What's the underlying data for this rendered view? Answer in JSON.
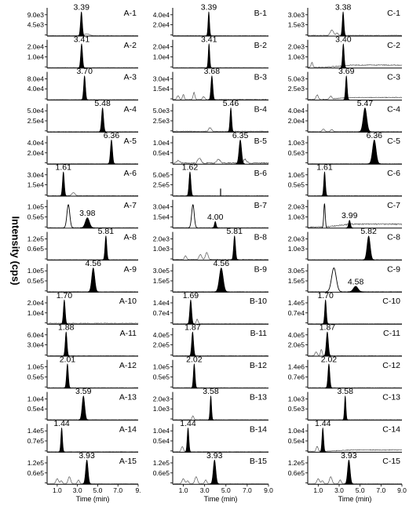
{
  "chart_data": {
    "type": "line",
    "ylabel": "Intensity (cps)",
    "xlabel": "Time (min)",
    "x_ticks": {
      "A": [
        "1.0",
        "3.0",
        "5.0",
        "7.0",
        "9."
      ],
      "B": [
        "1.0",
        "3.0",
        "5.0",
        "7.0",
        "9.0"
      ],
      "C": [
        "1.0",
        "3.0",
        "5.0",
        "7.0",
        "9.0"
      ]
    },
    "xlim": [
      0,
      9
    ],
    "columns": [
      "A",
      "B",
      "C"
    ],
    "panels": [
      {
        "label": "A-1",
        "peak": 3.39,
        "peak_label": "3.39",
        "width": 0.09,
        "y_ticks": [
          "9.0e3",
          "4.5e3",
          ""
        ],
        "ghost": [
          {
            "x": 3.9,
            "h": 0.07,
            "w": 0.25
          }
        ],
        "noise": 0.01
      },
      {
        "label": "A-2",
        "peak": 3.41,
        "peak_label": "3.41",
        "width": 0.09,
        "y_ticks": [
          "2.0e4",
          "1.0e4",
          ""
        ],
        "noise": 0.01
      },
      {
        "label": "A-3",
        "peak": 3.7,
        "peak_label": "3.70",
        "width": 0.09,
        "y_ticks": [
          "8.0e4",
          "4.0e4",
          ""
        ],
        "noise": 0.01
      },
      {
        "label": "A-4",
        "peak": 5.48,
        "peak_label": "5.48",
        "width": 0.1,
        "y_ticks": [
          "5.0e4",
          "2.5e4",
          ""
        ],
        "noise": 0.01
      },
      {
        "label": "A-5",
        "peak": 6.36,
        "peak_label": "6.36",
        "width": 0.1,
        "y_ticks": [
          "4.0e4",
          "2.0e4",
          ""
        ],
        "noise": 0.01
      },
      {
        "label": "A-6",
        "peak": 1.61,
        "peak_label": "1.61",
        "width": 0.09,
        "y_ticks": [
          "3.0e4",
          "1.5e4",
          ""
        ],
        "ghost": [
          {
            "x": 2.6,
            "h": 0.12,
            "w": 0.15
          }
        ],
        "noise": 0.01
      },
      {
        "label": "A-7",
        "peak": 3.98,
        "peak_label": "3.98",
        "width": 0.2,
        "height": 0.4,
        "y_ticks": [
          "1.0e5",
          "0.5e5",
          ""
        ],
        "open": [
          {
            "x": 2.1,
            "h": 0.92,
            "w": 0.14
          }
        ],
        "noise": 0.01
      },
      {
        "label": "A-8",
        "peak": 5.81,
        "peak_label": "5.81",
        "width": 0.09,
        "y_ticks": [
          "1.2e5",
          "0.6e5",
          ""
        ],
        "noise": 0.01
      },
      {
        "label": "A-9",
        "peak": 4.56,
        "peak_label": "4.56",
        "width": 0.15,
        "y_ticks": [
          "1.0e5",
          "0.5e5",
          ""
        ],
        "noise": 0.01
      },
      {
        "label": "A-10",
        "peak": 1.7,
        "peak_label": "1.70",
        "width": 0.09,
        "y_ticks": [
          "2.0e4",
          "1.0e4",
          ""
        ],
        "noise": 0.03
      },
      {
        "label": "A-11",
        "peak": 1.88,
        "peak_label": "1.88",
        "width": 0.09,
        "y_ticks": [
          "6.0e4",
          "3.0e4",
          ""
        ],
        "noise": 0.01
      },
      {
        "label": "A-12",
        "peak": 2.01,
        "peak_label": "2.01",
        "width": 0.09,
        "y_ticks": [
          "1.0e5",
          "0.5e5",
          ""
        ],
        "noise": 0.01
      },
      {
        "label": "A-13",
        "peak": 3.59,
        "peak_label": "3.59",
        "width": 0.13,
        "y_ticks": [
          "1.0e4",
          "0.5e4",
          ""
        ],
        "noise": 0.01
      },
      {
        "label": "A-14",
        "peak": 1.44,
        "peak_label": "1.44",
        "width": 0.08,
        "y_ticks": [
          "1.4e5",
          "0.7e5",
          ""
        ],
        "noise": 0.01
      },
      {
        "label": "A-15",
        "peak": 3.93,
        "peak_label": "3.93",
        "width": 0.12,
        "y_ticks": [
          "1.2e5",
          "0.6e5",
          ""
        ],
        "ghost": [
          {
            "x": 1.0,
            "h": 0.2,
            "w": 0.12
          },
          {
            "x": 1.4,
            "h": 0.12,
            "w": 0.1
          },
          {
            "x": 2.2,
            "h": 0.28,
            "w": 0.12
          },
          {
            "x": 3.1,
            "h": 0.15,
            "w": 0.1
          }
        ],
        "noise": 0.01
      },
      {
        "label": "B-1",
        "peak": 3.39,
        "peak_label": "3.39",
        "width": 0.07,
        "y_ticks": [
          "4.0e4",
          "2.0e4",
          ""
        ],
        "noise": 0.01
      },
      {
        "label": "B-2",
        "peak": 3.41,
        "peak_label": "3.41",
        "width": 0.07,
        "y_ticks": [
          "2.0e4",
          "1.0e4",
          ""
        ],
        "noise": 0.01
      },
      {
        "label": "B-3",
        "peak": 3.68,
        "peak_label": "3.68",
        "width": 0.09,
        "y_ticks": [
          "3.0e4",
          "1.5e4",
          ""
        ],
        "ghost": [
          {
            "x": 0.5,
            "h": 0.15,
            "w": 0.1
          },
          {
            "x": 1.0,
            "h": 0.2,
            "w": 0.08
          },
          {
            "x": 2.0,
            "h": 0.28,
            "w": 0.08
          },
          {
            "x": 2.9,
            "h": 0.12,
            "w": 0.1
          }
        ],
        "noise": 0.02
      },
      {
        "label": "B-4",
        "peak": 5.46,
        "peak_label": "5.46",
        "width": 0.08,
        "y_ticks": [
          "5.0e3",
          "2.5e3",
          ""
        ],
        "ghost": [
          {
            "x": 3.5,
            "h": 0.15,
            "w": 0.12
          }
        ],
        "noise": 0.03
      },
      {
        "label": "B-5",
        "peak": 6.35,
        "peak_label": "6.35",
        "width": 0.12,
        "y_ticks": [
          "1.0e4",
          "0.5e4",
          ""
        ],
        "ghost": [
          {
            "x": 0.5,
            "h": 0.1,
            "w": 0.15
          },
          {
            "x": 2.5,
            "h": 0.2,
            "w": 0.15
          },
          {
            "x": 4.3,
            "h": 0.16,
            "w": 0.15
          },
          {
            "x": 6.8,
            "h": 0.15,
            "w": 0.15
          }
        ],
        "noise": 0.05
      },
      {
        "label": "B-6",
        "peak": 1.62,
        "peak_label": "1.62",
        "width": 0.09,
        "y_ticks": [
          "5.0e5",
          "2.5e5",
          ""
        ],
        "spike": [
          {
            "x": 4.5,
            "h": 0.3
          }
        ],
        "noise": 0.01
      },
      {
        "label": "B-7",
        "peak": 4.0,
        "peak_label": "4.00",
        "width": 0.08,
        "height": 0.25,
        "y_ticks": [
          "3.0e4",
          "1.5e4",
          ""
        ],
        "open": [
          {
            "x": 1.9,
            "h": 0.92,
            "w": 0.12
          }
        ],
        "noise": 0.01
      },
      {
        "label": "B-8",
        "peak": 5.81,
        "peak_label": "5.81",
        "width": 0.09,
        "y_ticks": [
          "2.0e3",
          "1.0e3",
          ""
        ],
        "ghost": [
          {
            "x": 1.2,
            "h": 0.15,
            "w": 0.1
          },
          {
            "x": 2.6,
            "h": 0.2,
            "w": 0.12
          },
          {
            "x": 3.2,
            "h": 0.28,
            "w": 0.12
          }
        ],
        "noise": 0.02
      },
      {
        "label": "B-9",
        "peak": 4.56,
        "peak_label": "4.56",
        "width": 0.18,
        "y_ticks": [
          "3.0e5",
          "1.5e5",
          ""
        ],
        "noise": 0.01
      },
      {
        "label": "B-10",
        "peak": 1.69,
        "peak_label": "1.69",
        "width": 0.09,
        "y_ticks": [
          "1.4e4",
          "0.7e4",
          ""
        ],
        "ghost": [
          {
            "x": 2.3,
            "h": 0.18,
            "w": 0.08
          }
        ],
        "noise": 0.01
      },
      {
        "label": "B-11",
        "peak": 1.87,
        "peak_label": "1.87",
        "width": 0.09,
        "y_ticks": [
          "4.0e5",
          "2.0e5",
          ""
        ],
        "noise": 0.01
      },
      {
        "label": "B-12",
        "peak": 2.02,
        "peak_label": "2.02",
        "width": 0.08,
        "y_ticks": [
          "1.0e5",
          "0.5e5",
          ""
        ],
        "noise": 0.01
      },
      {
        "label": "B-13",
        "peak": 3.58,
        "peak_label": "3.58",
        "width": 0.07,
        "y_ticks": [
          "2.0e3",
          "1.0e3",
          ""
        ],
        "ghost": [
          {
            "x": 1.9,
            "h": 0.15,
            "w": 0.08
          }
        ],
        "noise": 0.01
      },
      {
        "label": "B-14",
        "peak": 1.44,
        "peak_label": "1.44",
        "width": 0.08,
        "y_ticks": [
          "1.0e4",
          "0.5e4",
          ""
        ],
        "ghost": [
          {
            "x": 0.9,
            "h": 0.2,
            "w": 0.1
          }
        ],
        "noise": 0.01
      },
      {
        "label": "B-15",
        "peak": 3.93,
        "peak_label": "3.93",
        "width": 0.12,
        "y_ticks": [
          "1.2e5",
          "0.6e5",
          ""
        ],
        "ghost": [
          {
            "x": 1.0,
            "h": 0.2,
            "w": 0.12
          },
          {
            "x": 1.4,
            "h": 0.12,
            "w": 0.1
          },
          {
            "x": 2.2,
            "h": 0.28,
            "w": 0.12
          },
          {
            "x": 3.1,
            "h": 0.15,
            "w": 0.1
          }
        ],
        "noise": 0.01
      },
      {
        "label": "C-1",
        "peak": 3.38,
        "peak_label": "3.38",
        "width": 0.08,
        "y_ticks": [
          "3.0e3",
          "1.5e3",
          ""
        ],
        "ghost": [
          {
            "x": 2.3,
            "h": 0.22,
            "w": 0.15
          },
          {
            "x": 2.8,
            "h": 0.1,
            "w": 0.1
          }
        ],
        "noise": 0.02
      },
      {
        "label": "C-2",
        "peak": 3.4,
        "peak_label": "3.40",
        "width": 0.08,
        "y_ticks": [
          "2.0e3",
          "1.0e3",
          ""
        ],
        "ghost": [
          {
            "x": 0.4,
            "h": 0.2,
            "w": 0.08
          }
        ],
        "noise": 0.03,
        "drift": 0.15
      },
      {
        "label": "C-3",
        "peak": 3.69,
        "peak_label": "3.69",
        "width": 0.08,
        "y_ticks": [
          "5.0e3",
          "2.5e3",
          ""
        ],
        "ghost": [
          {
            "x": 0.9,
            "h": 0.18,
            "w": 0.1
          },
          {
            "x": 2.2,
            "h": 0.12,
            "w": 0.1
          }
        ],
        "noise": 0.03,
        "drift": 0.12
      },
      {
        "label": "C-4",
        "peak": 5.47,
        "peak_label": "5.47",
        "width": 0.17,
        "y_ticks": [
          "4.0e4",
          "2.0e4",
          ""
        ],
        "ghost": [
          {
            "x": 1.5,
            "h": 0.1,
            "w": 0.12
          },
          {
            "x": 2.3,
            "h": 0.08,
            "w": 0.12
          }
        ],
        "noise": 0.01
      },
      {
        "label": "C-5",
        "peak": 6.36,
        "peak_label": "6.36",
        "width": 0.17,
        "y_ticks": [
          "1.0e3",
          "0.5e3",
          ""
        ],
        "noise": 0.01
      },
      {
        "label": "C-6",
        "peak": 1.61,
        "peak_label": "1.61",
        "width": 0.08,
        "y_ticks": [
          "1.0e5",
          "0.5e5",
          ""
        ],
        "noise": 0.01
      },
      {
        "label": "C-7",
        "peak": 3.99,
        "peak_label": "3.99",
        "width": 0.09,
        "height": 0.3,
        "y_ticks": [
          "2.0e3",
          "1.0e3",
          ""
        ],
        "open": [
          {
            "x": 1.6,
            "h": 0.95,
            "w": 0.07
          }
        ],
        "noise": 0.05,
        "drift": 0.2
      },
      {
        "label": "C-8",
        "peak": 5.82,
        "peak_label": "5.82",
        "width": 0.15,
        "y_ticks": [
          "2.0e3",
          "1.0e3",
          ""
        ],
        "noise": 0.01
      },
      {
        "label": "C-9",
        "peak": 4.58,
        "peak_label": "4.58",
        "width": 0.22,
        "height": 0.22,
        "y_ticks": [
          "3.0e5",
          "1.5e5",
          ""
        ],
        "open": [
          {
            "x": 2.5,
            "h": 0.95,
            "w": 0.22
          }
        ],
        "noise": 0.01
      },
      {
        "label": "C-10",
        "peak": 1.7,
        "peak_label": "1.70",
        "width": 0.08,
        "y_ticks": [
          "1.4e5",
          "0.7e4",
          ""
        ],
        "noise": 0.01
      },
      {
        "label": "C-11",
        "peak": 1.87,
        "peak_label": "1.87",
        "width": 0.1,
        "y_ticks": [
          "4.0e5",
          "2.0e5",
          ""
        ],
        "ghost": [
          {
            "x": 0.8,
            "h": 0.15,
            "w": 0.1
          },
          {
            "x": 1.3,
            "h": 0.25,
            "w": 0.08
          }
        ],
        "noise": 0.01
      },
      {
        "label": "C-12",
        "peak": 2.02,
        "peak_label": "2.02",
        "width": 0.09,
        "y_ticks": [
          "1.4e6",
          "0.7e6",
          ""
        ],
        "noise": 0.01
      },
      {
        "label": "C-13",
        "peak": 3.58,
        "peak_label": "3.58",
        "width": 0.07,
        "y_ticks": [
          "1.0e3",
          "0.5e3",
          ""
        ],
        "noise": 0.01
      },
      {
        "label": "C-14",
        "peak": 1.44,
        "peak_label": "1.44",
        "width": 0.08,
        "y_ticks": [
          "1.0e4",
          "0.5e4",
          ""
        ],
        "ghost": [
          {
            "x": 0.9,
            "h": 0.2,
            "w": 0.1
          }
        ],
        "noise": 0.03,
        "drift": 0.1
      },
      {
        "label": "C-15",
        "peak": 3.93,
        "peak_label": "3.93",
        "width": 0.12,
        "y_ticks": [
          "1.2e5",
          "0.6e5",
          ""
        ],
        "ghost": [
          {
            "x": 1.0,
            "h": 0.2,
            "w": 0.12
          },
          {
            "x": 1.4,
            "h": 0.12,
            "w": 0.1
          },
          {
            "x": 2.2,
            "h": 0.28,
            "w": 0.12
          },
          {
            "x": 3.1,
            "h": 0.15,
            "w": 0.1
          }
        ],
        "noise": 0.01
      }
    ]
  }
}
